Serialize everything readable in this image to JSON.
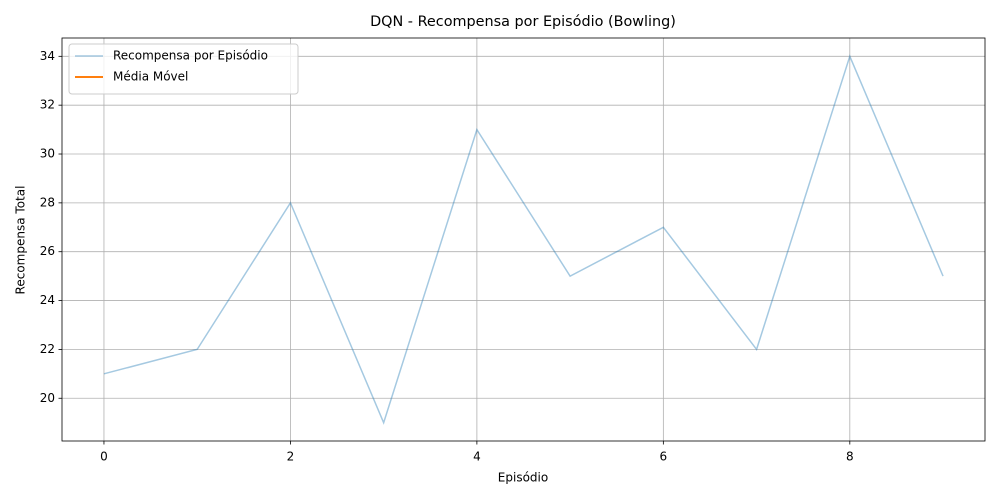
{
  "chart_data": {
    "type": "line",
    "title": "DQN - Recompensa por Episódio (Bowling)",
    "x_label": "Episódio",
    "y_label": "Recompensa Total",
    "x": [
      0,
      1,
      2,
      3,
      4,
      5,
      6,
      7,
      8,
      9
    ],
    "series": [
      {
        "name": "Recompensa por Episódio",
        "color": "#1f77b4",
        "alpha": 0.4,
        "line_width": 1.5,
        "values": [
          21,
          22,
          28,
          19,
          31,
          25,
          27,
          22,
          34,
          25
        ]
      },
      {
        "name": "Média Móvel",
        "color": "#ff7f0e",
        "alpha": 1,
        "line_width": 2,
        "values": [
          null,
          null,
          null,
          null,
          null,
          null,
          null,
          null,
          null,
          null
        ]
      }
    ],
    "xlim": [
      -0.45,
      9.45
    ],
    "xticks": [
      0,
      2,
      4,
      6,
      8
    ],
    "ylim": [
      18.25,
      34.75
    ],
    "yticks": [
      20,
      22,
      24,
      26,
      28,
      30,
      32,
      34
    ],
    "grid": true,
    "legend": "upper left"
  }
}
